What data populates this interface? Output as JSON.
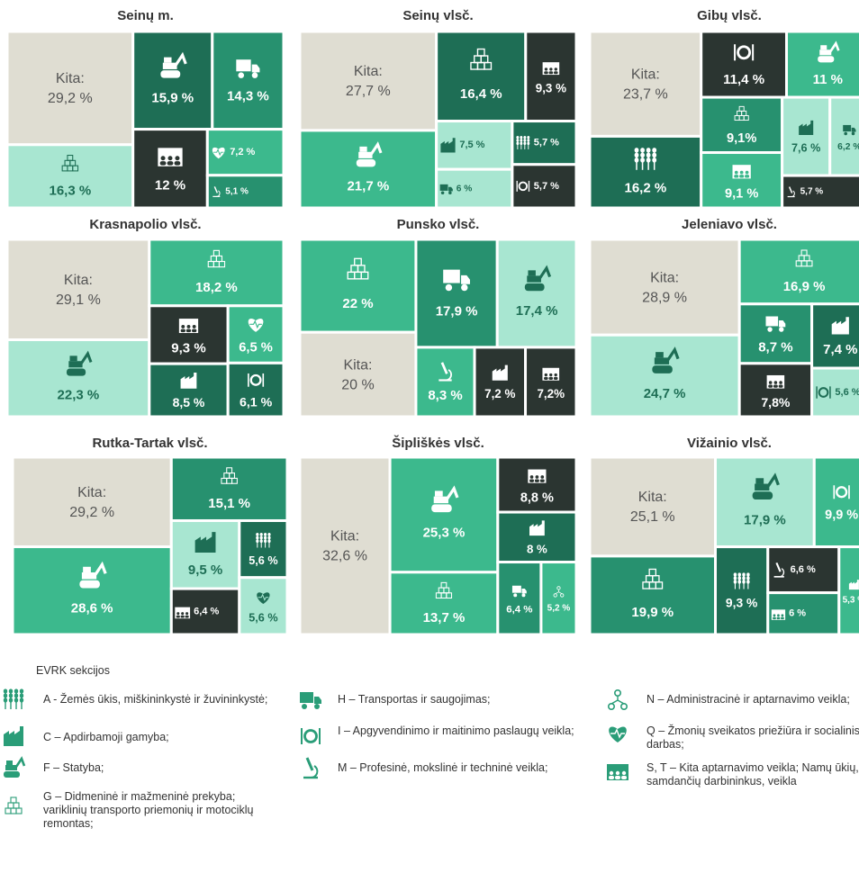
{
  "chart_data": [
    {
      "type": "treemap",
      "title": "Seinų m.",
      "categories": [
        "Kita:",
        null,
        null,
        null,
        null,
        null,
        null
      ],
      "sectors": [
        null,
        "G",
        "F",
        "H",
        "S, T",
        "Q",
        "M"
      ],
      "values": [
        29.2,
        16.3,
        15.9,
        14.3,
        12,
        7.2,
        5.1
      ],
      "value_labels": [
        "29,2 %",
        "16,3 %",
        "15,9 %",
        "14,3 %",
        "12 %",
        "7,2 %",
        "5,1 %"
      ],
      "colors": [
        "#dfddd2",
        "#a8e6d1",
        "#1e6e55",
        "#27916f",
        "#2b3531",
        "#3cb98d",
        "#27916f"
      ]
    },
    {
      "type": "treemap",
      "title": "Seinų vlsč.",
      "categories": [
        "Kita:",
        null,
        null,
        null,
        null,
        null,
        null,
        null
      ],
      "sectors": [
        null,
        "F",
        "G",
        "S, T",
        "C",
        "H",
        "A",
        "I"
      ],
      "values": [
        27.7,
        21.7,
        16.4,
        9.3,
        7.5,
        6,
        5.7,
        5.7
      ],
      "value_labels": [
        "27,7 %",
        "21,7 %",
        "16,4 %",
        "9,3 %",
        "7,5 %",
        "6 %",
        "5,7 %",
        "5,7 %"
      ],
      "colors": [
        "#dfddd2",
        "#3cb98d",
        "#1e6e55",
        "#2b3531",
        "#a8e6d1",
        "#a8e6d1",
        "#1e6e55",
        "#2b3531"
      ]
    },
    {
      "type": "treemap",
      "title": "Gibų vlsč.",
      "categories": [
        "Kita:",
        null,
        null,
        null,
        null,
        null,
        null,
        null,
        null
      ],
      "sectors": [
        null,
        "A",
        "I",
        "F",
        "G",
        "S, T",
        "C",
        "H",
        "M"
      ],
      "values": [
        23.7,
        16.2,
        11.4,
        11,
        9.1,
        9.1,
        7.6,
        6.2,
        5.7
      ],
      "value_labels": [
        "23,7 %",
        "16,2 %",
        "11,4 %",
        "11 %",
        "9,1%",
        "9,1 %",
        "7,6 %",
        "6,2 %",
        "5,7 %"
      ],
      "colors": [
        "#dfddd2",
        "#1e6e55",
        "#2b3531",
        "#3cb98d",
        "#27916f",
        "#3cb98d",
        "#a8e6d1",
        "#a8e6d1",
        "#2b3531"
      ]
    },
    {
      "type": "treemap",
      "title": "Krasnapolio vlsč.",
      "categories": [
        "Kita:",
        null,
        null,
        null,
        null,
        null,
        null
      ],
      "sectors": [
        null,
        "F",
        "G",
        "S, T",
        "C",
        "Q",
        "I"
      ],
      "values": [
        29.1,
        22.3,
        18.2,
        9.3,
        8.5,
        6.5,
        6.1
      ],
      "value_labels": [
        "29,1 %",
        "22,3 %",
        "18,2 %",
        "9,3 %",
        "8,5 %",
        "6,5 %",
        "6,1 %"
      ],
      "colors": [
        "#dfddd2",
        "#a8e6d1",
        "#3cb98d",
        "#2b3531",
        "#1e6e55",
        "#3cb98d",
        "#1e6e55"
      ]
    },
    {
      "type": "treemap",
      "title": "Punsko vlsč.",
      "categories": [
        null,
        "Kita:",
        null,
        null,
        null,
        null,
        null
      ],
      "sectors": [
        "G",
        null,
        "H",
        "F",
        "M",
        "C",
        "S, T"
      ],
      "values": [
        22,
        20,
        17.9,
        17.4,
        8.3,
        7.2,
        7.2
      ],
      "value_labels": [
        "22 %",
        "20 %",
        "17,9 %",
        "17,4 %",
        "8,3 %",
        "7,2 %",
        "7,2%"
      ],
      "colors": [
        "#3cb98d",
        "#dfddd2",
        "#27916f",
        "#a8e6d1",
        "#3cb98d",
        "#2b3531",
        "#2b3531"
      ]
    },
    {
      "type": "treemap",
      "title": "Jeleniavo vlsč.",
      "categories": [
        "Kita:",
        null,
        null,
        null,
        null,
        null,
        null
      ],
      "sectors": [
        null,
        "F",
        "G",
        "H",
        "S, T",
        "C",
        "I"
      ],
      "values": [
        28.9,
        24.7,
        16.9,
        8.7,
        7.8,
        7.4,
        5.6
      ],
      "value_labels": [
        "28,9 %",
        "24,7 %",
        "16,9 %",
        "8,7 %",
        "7,8%",
        "7,4 %",
        "5,6 %"
      ],
      "colors": [
        "#dfddd2",
        "#a8e6d1",
        "#3cb98d",
        "#27916f",
        "#2b3531",
        "#1e6e55",
        "#a8e6d1"
      ]
    },
    {
      "type": "treemap",
      "title": "Rutka-Tartak vlsč.",
      "categories": [
        "Kita:",
        null,
        null,
        null,
        null,
        null,
        null
      ],
      "sectors": [
        null,
        "F",
        "G",
        "C",
        "S, T",
        "A",
        "Q"
      ],
      "values": [
        29.2,
        28.6,
        15.1,
        9.5,
        6.4,
        5.6,
        5.6
      ],
      "value_labels": [
        "29,2 %",
        "28,6 %",
        "15,1 %",
        "9,5 %",
        "6,4 %",
        "5,6 %",
        "5,6 %"
      ],
      "colors": [
        "#dfddd2",
        "#3cb98d",
        "#27916f",
        "#a8e6d1",
        "#2b3531",
        "#1e6e55",
        "#a8e6d1"
      ]
    },
    {
      "type": "treemap",
      "title": "Šipliškės vlsč.",
      "categories": [
        "Kita:",
        null,
        null,
        null,
        null,
        null,
        null
      ],
      "sectors": [
        null,
        "F",
        "G",
        "S, T",
        "C",
        "H",
        "N"
      ],
      "values": [
        32.6,
        25.3,
        13.7,
        8.8,
        8,
        6.4,
        5.2
      ],
      "value_labels": [
        "32,6 %",
        "25,3 %",
        "13,7 %",
        "8,8 %",
        "8 %",
        "6,4 %",
        "5,2 %"
      ],
      "colors": [
        "#dfddd2",
        "#3cb98d",
        "#3cb98d",
        "#2b3531",
        "#1e6e55",
        "#27916f",
        "#3cb98d"
      ]
    },
    {
      "type": "treemap",
      "title": "Vižainio vlsč.",
      "categories": [
        "Kita:",
        null,
        null,
        null,
        null,
        null,
        null,
        null
      ],
      "sectors": [
        null,
        "G",
        "F",
        "I",
        "A",
        "M",
        "S, T",
        "C"
      ],
      "values": [
        25.1,
        19.9,
        17.9,
        9.9,
        9.3,
        6.6,
        6,
        5.3
      ],
      "value_labels": [
        "25,1 %",
        "19,9 %",
        "17,9 %",
        "9,9 %",
        "9,3 %",
        "6,6 %",
        "6 %",
        "5,3 %"
      ],
      "colors": [
        "#dfddd2",
        "#27916f",
        "#a8e6d1",
        "#3cb98d",
        "#1e6e55",
        "#2b3531",
        "#27916f",
        "#3cb98d"
      ]
    }
  ],
  "legend": {
    "title": "EVRK sekcijos",
    "color": "#2a9d78",
    "items": [
      {
        "sector": "A",
        "text": "A - Žemės ūkis, miškininkystė ir žuvininkystė;"
      },
      {
        "sector": "C",
        "text": "C – Apdirbamoji gamyba;"
      },
      {
        "sector": "F",
        "text": "F – Statyba;"
      },
      {
        "sector": "G",
        "text": "G – Didmeninė ir mažmeninė prekyba; variklinių transporto priemonių ir motociklų remontas;"
      },
      {
        "sector": "H",
        "text": "H – Transportas ir saugojimas;"
      },
      {
        "sector": "I",
        "text": "I – Apgyvendinimo ir maitinimo paslaugų veikla;"
      },
      {
        "sector": "M",
        "text": "M – Profesinė, mokslinė ir techninė veikla;"
      },
      {
        "sector": "N",
        "text": "N – Administracinė ir aptarnavimo veikla;"
      },
      {
        "sector": "Q",
        "text": "Q – Žmonių sveikatos priežiūra ir socialinis darbas;"
      },
      {
        "sector": "S, T",
        "text": "S, T – Kita aptarnavimo veikla; Namų ūkių, samdančių darbininkus, veikla"
      }
    ]
  }
}
